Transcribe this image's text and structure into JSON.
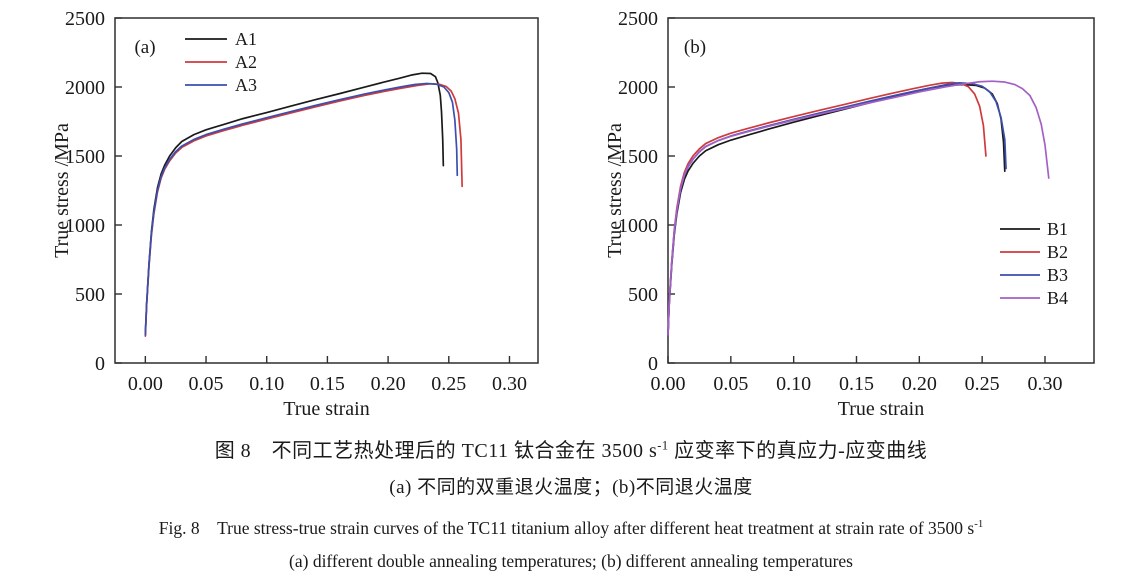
{
  "figure": {
    "captions": {
      "zh_title": {
        "pre": "图 8　不同工艺热处理后的 TC11 钛合金在 3500 s",
        "sup": "-1",
        "post": " 应变率下的真应力-应变曲线"
      },
      "zh_sub": "(a) 不同的双重退火温度；(b)不同退火温度",
      "en_title": {
        "pre": "Fig. 8　True stress-true strain curves of the TC11 titanium alloy after different heat treatment at strain rate of 3500 s",
        "sup": "-1",
        "post": ""
      },
      "en_sub": "(a) different double annealing temperatures; (b) different annealing temperatures"
    }
  },
  "chart_data": [
    {
      "type": "line",
      "panel_label": "(a)",
      "xlabel": "True strain",
      "ylabel": "True stress /MPa",
      "xlim": [
        -0.025,
        0.3235
      ],
      "ylim": [
        0,
        2500
      ],
      "grid": false,
      "legend_position": "upper-left-inside",
      "xticks": {
        "values": [
          0.0,
          0.05,
          0.1,
          0.15,
          0.2,
          0.25,
          0.3
        ],
        "labels": [
          "0.00",
          "0.05",
          "0.10",
          "0.15",
          "0.20",
          "0.25",
          "0.30"
        ]
      },
      "yticks": {
        "values": [
          0,
          500,
          1000,
          1500,
          2000,
          2500
        ],
        "labels": [
          "0",
          "500",
          "1000",
          "1500",
          "2000",
          "2500"
        ]
      },
      "axis_color": "#2e2e2e",
      "series": [
        {
          "name": "A1",
          "color": "#1a1a1a",
          "points": [
            [
              0.0,
              200
            ],
            [
              0.001,
              420
            ],
            [
              0.003,
              720
            ],
            [
              0.005,
              950
            ],
            [
              0.007,
              1110
            ],
            [
              0.01,
              1270
            ],
            [
              0.013,
              1370
            ],
            [
              0.016,
              1435
            ],
            [
              0.02,
              1500
            ],
            [
              0.025,
              1560
            ],
            [
              0.03,
              1605
            ],
            [
              0.04,
              1655
            ],
            [
              0.05,
              1690
            ],
            [
              0.065,
              1730
            ],
            [
              0.08,
              1770
            ],
            [
              0.1,
              1815
            ],
            [
              0.12,
              1862
            ],
            [
              0.14,
              1908
            ],
            [
              0.16,
              1952
            ],
            [
              0.18,
              1998
            ],
            [
              0.195,
              2032
            ],
            [
              0.21,
              2065
            ],
            [
              0.22,
              2088
            ],
            [
              0.228,
              2100
            ],
            [
              0.235,
              2098
            ],
            [
              0.239,
              2075
            ],
            [
              0.241,
              2030
            ],
            [
              0.243,
              1940
            ],
            [
              0.244,
              1820
            ],
            [
              0.245,
              1620
            ],
            [
              0.2455,
              1430
            ]
          ]
        },
        {
          "name": "A2",
          "color": "#d03a3c",
          "points": [
            [
              0.0,
              195
            ],
            [
              0.001,
              410
            ],
            [
              0.003,
              700
            ],
            [
              0.005,
              925
            ],
            [
              0.007,
              1080
            ],
            [
              0.01,
              1240
            ],
            [
              0.013,
              1340
            ],
            [
              0.016,
              1405
            ],
            [
              0.02,
              1465
            ],
            [
              0.025,
              1522
            ],
            [
              0.03,
              1562
            ],
            [
              0.04,
              1610
            ],
            [
              0.05,
              1645
            ],
            [
              0.065,
              1685
            ],
            [
              0.08,
              1722
            ],
            [
              0.1,
              1768
            ],
            [
              0.12,
              1812
            ],
            [
              0.14,
              1856
            ],
            [
              0.16,
              1898
            ],
            [
              0.18,
              1938
            ],
            [
              0.195,
              1965
            ],
            [
              0.21,
              1990
            ],
            [
              0.225,
              2012
            ],
            [
              0.235,
              2023
            ],
            [
              0.242,
              2020
            ],
            [
              0.248,
              2003
            ],
            [
              0.252,
              1970
            ],
            [
              0.255,
              1915
            ],
            [
              0.258,
              1810
            ],
            [
              0.26,
              1620
            ],
            [
              0.261,
              1280
            ]
          ]
        },
        {
          "name": "A3",
          "color": "#3c4fae",
          "points": [
            [
              0.0,
              205
            ],
            [
              0.001,
              415
            ],
            [
              0.003,
              710
            ],
            [
              0.005,
              935
            ],
            [
              0.007,
              1090
            ],
            [
              0.01,
              1250
            ],
            [
              0.013,
              1350
            ],
            [
              0.016,
              1415
            ],
            [
              0.02,
              1475
            ],
            [
              0.025,
              1532
            ],
            [
              0.03,
              1572
            ],
            [
              0.04,
              1620
            ],
            [
              0.05,
              1655
            ],
            [
              0.065,
              1695
            ],
            [
              0.08,
              1732
            ],
            [
              0.1,
              1778
            ],
            [
              0.12,
              1822
            ],
            [
              0.14,
              1866
            ],
            [
              0.16,
              1908
            ],
            [
              0.18,
              1948
            ],
            [
              0.195,
              1975
            ],
            [
              0.21,
              2000
            ],
            [
              0.222,
              2018
            ],
            [
              0.232,
              2026
            ],
            [
              0.24,
              2020
            ],
            [
              0.246,
              2000
            ],
            [
              0.25,
              1960
            ],
            [
              0.253,
              1890
            ],
            [
              0.255,
              1760
            ],
            [
              0.2565,
              1550
            ],
            [
              0.257,
              1360
            ]
          ]
        }
      ]
    },
    {
      "type": "line",
      "panel_label": "(b)",
      "xlabel": "True strain",
      "ylabel": "True stress /MPa",
      "xlim": [
        0,
        0.339
      ],
      "ylim": [
        0,
        2500
      ],
      "grid": false,
      "legend_position": "middle-right-inside",
      "xticks": {
        "values": [
          0.0,
          0.05,
          0.1,
          0.15,
          0.2,
          0.25,
          0.3
        ],
        "labels": [
          "0.00",
          "0.05",
          "0.10",
          "0.15",
          "0.20",
          "0.25",
          "0.30"
        ]
      },
      "yticks": {
        "values": [
          0,
          500,
          1000,
          1500,
          2000,
          2500
        ],
        "labels": [
          "0",
          "500",
          "1000",
          "1500",
          "2000",
          "2500"
        ]
      },
      "axis_color": "#2e2e2e",
      "series": [
        {
          "name": "B1",
          "color": "#1a1a1a",
          "points": [
            [
              0.0,
              200
            ],
            [
              0.001,
              430
            ],
            [
              0.003,
              710
            ],
            [
              0.005,
              930
            ],
            [
              0.007,
              1080
            ],
            [
              0.01,
              1235
            ],
            [
              0.013,
              1330
            ],
            [
              0.016,
              1392
            ],
            [
              0.02,
              1448
            ],
            [
              0.025,
              1500
            ],
            [
              0.03,
              1538
            ],
            [
              0.04,
              1582
            ],
            [
              0.05,
              1615
            ],
            [
              0.065,
              1655
            ],
            [
              0.08,
              1695
            ],
            [
              0.1,
              1745
            ],
            [
              0.12,
              1792
            ],
            [
              0.14,
              1838
            ],
            [
              0.16,
              1885
            ],
            [
              0.18,
              1932
            ],
            [
              0.195,
              1965
            ],
            [
              0.21,
              1995
            ],
            [
              0.225,
              2012
            ],
            [
              0.235,
              2018
            ],
            [
              0.245,
              2012
            ],
            [
              0.252,
              1992
            ],
            [
              0.258,
              1950
            ],
            [
              0.262,
              1880
            ],
            [
              0.265,
              1770
            ],
            [
              0.267,
              1600
            ],
            [
              0.268,
              1390
            ]
          ]
        },
        {
          "name": "B2",
          "color": "#d03a3c",
          "points": [
            [
              0.0,
              205
            ],
            [
              0.001,
              450
            ],
            [
              0.003,
              740
            ],
            [
              0.005,
              965
            ],
            [
              0.007,
              1120
            ],
            [
              0.01,
              1280
            ],
            [
              0.013,
              1380
            ],
            [
              0.016,
              1445
            ],
            [
              0.02,
              1502
            ],
            [
              0.025,
              1552
            ],
            [
              0.03,
              1590
            ],
            [
              0.04,
              1633
            ],
            [
              0.05,
              1665
            ],
            [
              0.065,
              1703
            ],
            [
              0.08,
              1740
            ],
            [
              0.1,
              1786
            ],
            [
              0.12,
              1830
            ],
            [
              0.14,
              1873
            ],
            [
              0.16,
              1916
            ],
            [
              0.18,
              1958
            ],
            [
              0.195,
              1988
            ],
            [
              0.208,
              2012
            ],
            [
              0.218,
              2028
            ],
            [
              0.226,
              2033
            ],
            [
              0.233,
              2026
            ],
            [
              0.239,
              2002
            ],
            [
              0.244,
              1950
            ],
            [
              0.248,
              1860
            ],
            [
              0.251,
              1720
            ],
            [
              0.253,
              1500
            ]
          ]
        },
        {
          "name": "B3",
          "color": "#3c4fae",
          "points": [
            [
              0.0,
              202
            ],
            [
              0.001,
              440
            ],
            [
              0.003,
              725
            ],
            [
              0.005,
              950
            ],
            [
              0.007,
              1100
            ],
            [
              0.01,
              1260
            ],
            [
              0.013,
              1358
            ],
            [
              0.016,
              1422
            ],
            [
              0.02,
              1478
            ],
            [
              0.025,
              1530
            ],
            [
              0.03,
              1568
            ],
            [
              0.04,
              1612
            ],
            [
              0.05,
              1645
            ],
            [
              0.065,
              1683
            ],
            [
              0.08,
              1720
            ],
            [
              0.1,
              1766
            ],
            [
              0.12,
              1810
            ],
            [
              0.14,
              1853
            ],
            [
              0.16,
              1896
            ],
            [
              0.18,
              1938
            ],
            [
              0.195,
              1968
            ],
            [
              0.21,
              1996
            ],
            [
              0.222,
              2018
            ],
            [
              0.232,
              2030
            ],
            [
              0.242,
              2025
            ],
            [
              0.25,
              2005
            ],
            [
              0.256,
              1965
            ],
            [
              0.261,
              1895
            ],
            [
              0.265,
              1780
            ],
            [
              0.268,
              1620
            ],
            [
              0.269,
              1410
            ]
          ]
        },
        {
          "name": "B4",
          "color": "#a361c6",
          "points": [
            [
              0.0,
              203
            ],
            [
              0.001,
              445
            ],
            [
              0.003,
              730
            ],
            [
              0.005,
              955
            ],
            [
              0.007,
              1105
            ],
            [
              0.01,
              1265
            ],
            [
              0.013,
              1362
            ],
            [
              0.016,
              1426
            ],
            [
              0.02,
              1480
            ],
            [
              0.025,
              1532
            ],
            [
              0.03,
              1570
            ],
            [
              0.04,
              1612
            ],
            [
              0.05,
              1643
            ],
            [
              0.065,
              1680
            ],
            [
              0.08,
              1715
            ],
            [
              0.1,
              1760
            ],
            [
              0.12,
              1802
            ],
            [
              0.14,
              1843
            ],
            [
              0.16,
              1884
            ],
            [
              0.18,
              1924
            ],
            [
              0.2,
              1964
            ],
            [
              0.22,
              2000
            ],
            [
              0.235,
              2022
            ],
            [
              0.248,
              2038
            ],
            [
              0.258,
              2042
            ],
            [
              0.268,
              2036
            ],
            [
              0.276,
              2018
            ],
            [
              0.282,
              1988
            ],
            [
              0.288,
              1938
            ],
            [
              0.293,
              1850
            ],
            [
              0.297,
              1730
            ],
            [
              0.3,
              1580
            ],
            [
              0.302,
              1420
            ],
            [
              0.303,
              1340
            ]
          ]
        }
      ]
    }
  ]
}
